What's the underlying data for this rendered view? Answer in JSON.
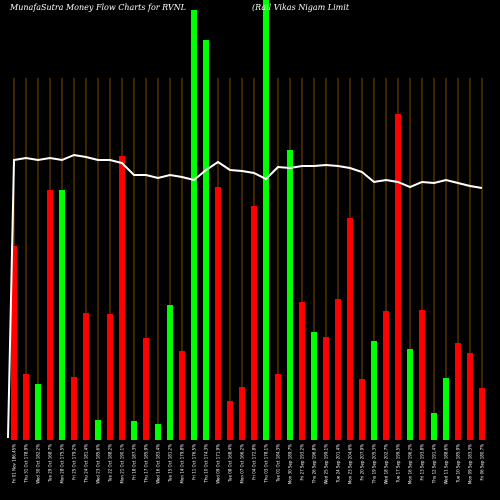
{
  "chart_data": {
    "type": "bar",
    "title": "MunafaSutra  Money Flow  Charts for RVNL",
    "subtitle": "(Rail Vikas Nigam Limit",
    "ylim": [
      0,
      440
    ],
    "grid": "vertical",
    "colors": {
      "up": "#00ff00",
      "down": "#ff0000",
      "grid": "#b36b00",
      "line": "#ffffff",
      "background": "#000000"
    },
    "categories": [
      "xtick-01",
      "xtick-02",
      "xtick-03",
      "xtick-04",
      "xtick-05",
      "xtick-06",
      "xtick-07",
      "xtick-08",
      "xtick-09",
      "xtick-10",
      "xtick-11",
      "xtick-12",
      "xtick-13",
      "xtick-14",
      "xtick-15",
      "xtick-16",
      "xtick-17",
      "xtick-18",
      "xtick-19",
      "xtick-20",
      "xtick-21",
      "xtick-22",
      "xtick-23",
      "xtick-24",
      "xtick-25",
      "xtick-26",
      "xtick-27",
      "xtick-28",
      "xtick-29",
      "xtick-30",
      "xtick-31",
      "xtick-32",
      "xtick-33",
      "xtick-34",
      "xtick-35",
      "xtick-36",
      "xtick-37",
      "xtick-38",
      "xtick-39",
      "xtick-40"
    ],
    "tick_labels": [
      "Fri 01 Nov 186.45%",
      "Thu 31 Oct 178.9%",
      "Wed 30 Oct 182.2%",
      "Tue 29 Oct 168.7%",
      "Mon 28 Oct 175.5%",
      "Fri 25 Oct 179.2%",
      "Thu 24 Oct 181.4%",
      "Wed 23 Oct 185.6%",
      "Tue 22 Oct 188.2%",
      "Mon 21 Oct 190.1%",
      "Fri 18 Oct 187.3%",
      "Thu 17 Oct 185.9%",
      "Wed 16 Oct 183.4%",
      "Tue 15 Oct 181.2%",
      "Mon 14 Oct 179.8%",
      "Fri 11 Oct 176.5%",
      "Thu 10 Oct 174.3%",
      "Wed 09 Oct 171.9%",
      "Tue 08 Oct 168.4%",
      "Mon 07 Oct 166.2%",
      "Fri 04 Oct 172.8%",
      "Thu 03 Oct 178.1%",
      "Tue 01 Oct 184.3%",
      "Mon 30 Sep 189.7%",
      "Fri 27 Sep 193.2%",
      "Thu 26 Sep 196.8%",
      "Wed 25 Sep 199.1%",
      "Tue 24 Sep 201.4%",
      "Mon 23 Sep 204.6%",
      "Fri 20 Sep 207.9%",
      "Thu 19 Sep 205.3%",
      "Wed 18 Sep 202.7%",
      "Tue 17 Sep 199.5%",
      "Mon 16 Sep 196.2%",
      "Fri 13 Sep 193.8%",
      "Thu 12 Sep 191.4%",
      "Wed 11 Sep 188.6%",
      "Tue 10 Sep 185.9%",
      "Mon 09 Sep 183.3%",
      "Fri 06 Sep 180.7%"
    ],
    "series": [
      {
        "values": [
          194,
          66,
          56,
          250,
          250,
          63,
          127,
          20,
          126,
          284,
          19,
          102,
          16,
          135,
          89,
          430,
          400,
          253,
          39,
          53,
          234,
          440,
          66,
          290,
          138,
          108,
          103,
          141,
          222,
          61,
          99,
          129,
          326,
          91,
          130,
          27,
          62,
          97,
          87,
          52
        ],
        "direction": [
          "down",
          "down",
          "up",
          "down",
          "up",
          "down",
          "down",
          "up",
          "down",
          "down",
          "up",
          "down",
          "up",
          "up",
          "down",
          "up",
          "up",
          "down",
          "down",
          "down",
          "down",
          "up",
          "down",
          "up",
          "down",
          "up",
          "down",
          "down",
          "down",
          "down",
          "up",
          "down",
          "down",
          "up",
          "down",
          "up",
          "up",
          "down",
          "down",
          "down"
        ]
      },
      {
        "values": [
          280,
          282,
          280,
          282,
          280,
          285,
          283,
          280,
          280,
          277,
          265,
          265,
          262,
          265,
          263,
          260,
          270,
          278,
          270,
          269,
          267,
          261,
          273,
          272,
          274,
          274,
          275,
          274,
          272,
          268,
          258,
          260,
          258,
          253,
          258,
          257,
          260,
          257,
          254,
          252
        ]
      }
    ]
  }
}
